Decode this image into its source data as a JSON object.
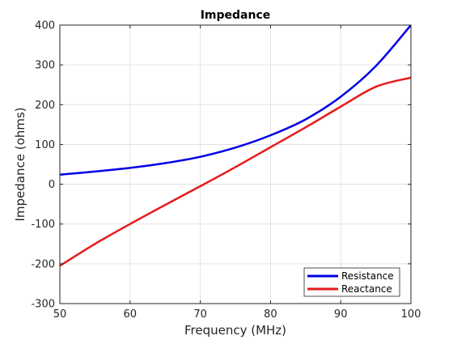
{
  "chart_data": {
    "type": "line",
    "title": "Impedance",
    "xlabel": "Frequency (MHz)",
    "ylabel": "Impedance (ohms)",
    "xlim": [
      50,
      100
    ],
    "ylim": [
      -300,
      400
    ],
    "xticks": [
      50,
      60,
      70,
      80,
      90,
      100
    ],
    "yticks": [
      -300,
      -200,
      -100,
      0,
      100,
      200,
      300,
      400
    ],
    "grid": true,
    "legend_position": "bottom-right",
    "series": [
      {
        "name": "Resistance",
        "color": "#0000e6",
        "x": [
          50,
          55,
          60,
          65,
          70,
          75,
          80,
          85,
          90,
          95,
          100
        ],
        "y": [
          24,
          32,
          41,
          53,
          69,
          92,
          123,
          163,
          220,
          297,
          400
        ]
      },
      {
        "name": "Reactance",
        "color": "#e61a1a",
        "x": [
          50,
          55,
          60,
          65,
          70,
          75,
          80,
          85,
          90,
          95,
          100
        ],
        "y": [
          -205,
          -150,
          -100,
          -52,
          -5,
          43,
          93,
          143,
          195,
          245,
          268
        ]
      }
    ]
  }
}
